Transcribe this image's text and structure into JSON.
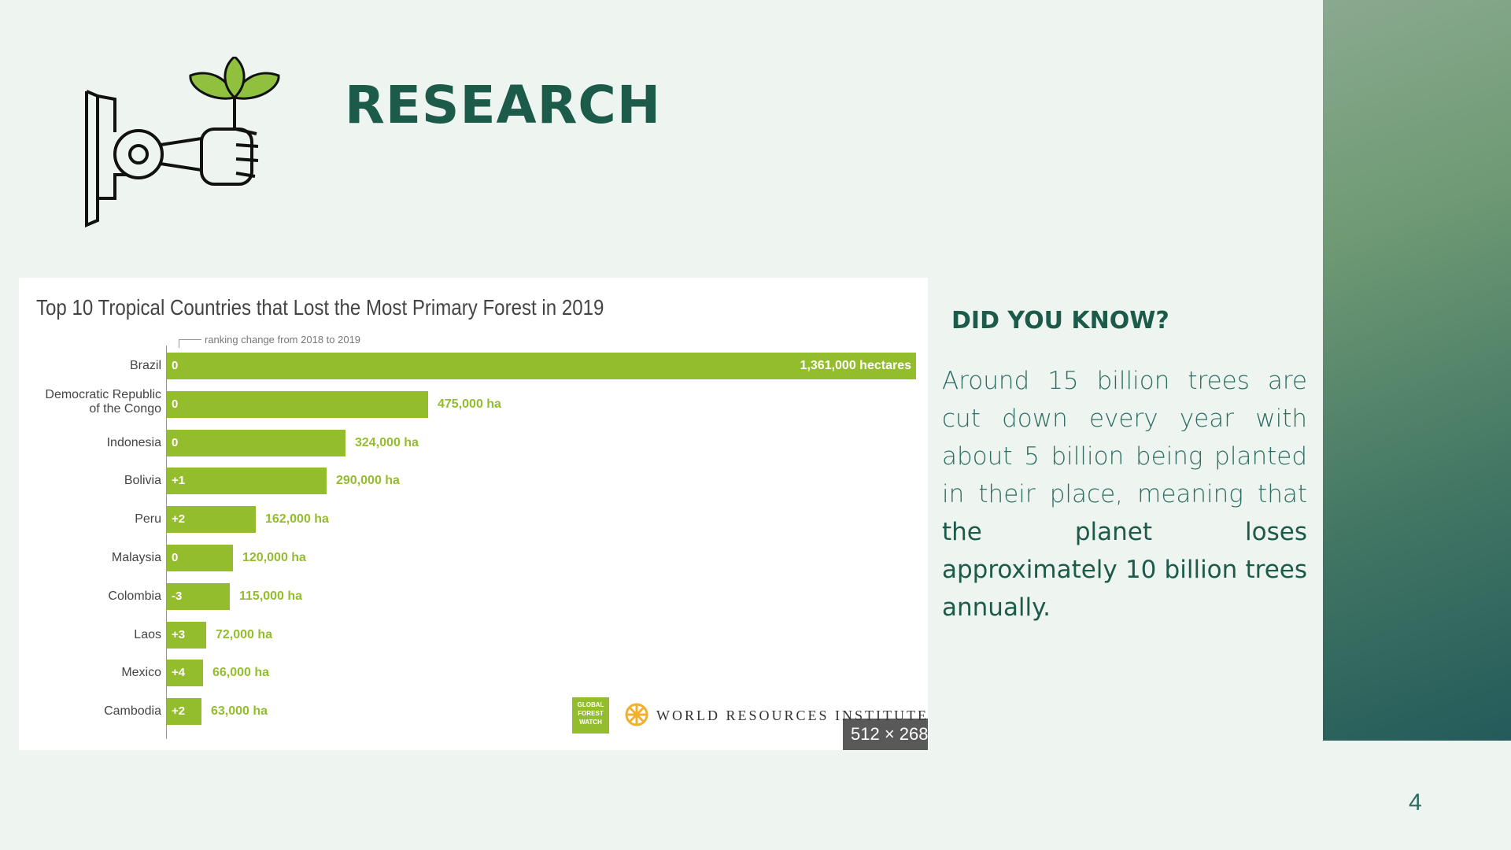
{
  "slide": {
    "title": "RESEARCH",
    "page_number": "4"
  },
  "icons": {
    "logo": "hand-holding-sprout-icon",
    "wri_mark": "wri-star-icon"
  },
  "chart": {
    "title": "Top 10 Tropical Countries that Lost the Most Primary Forest in 2019",
    "rank_note": "ranking change from 2018 to 2019",
    "gfw_logo_text": "GLOBAL FOREST WATCH",
    "wri_text": "WORLD RESOURCES INSTITUTE",
    "size_badge": "512 × 268"
  },
  "chart_data": {
    "type": "bar",
    "orientation": "horizontal",
    "title": "Top 10 Tropical Countries that Lost the Most Primary Forest in 2019",
    "categories": [
      "Brazil",
      "Democratic Republic of the Congo",
      "Indonesia",
      "Bolivia",
      "Peru",
      "Malaysia",
      "Colombia",
      "Laos",
      "Mexico",
      "Cambodia"
    ],
    "values": [
      1361000,
      475000,
      324000,
      290000,
      162000,
      120000,
      115000,
      72000,
      66000,
      63000
    ],
    "value_labels": [
      "1,361,000 hectares",
      "475,000 ha",
      "324,000 ha",
      "290,000 ha",
      "162,000 ha",
      "120,000 ha",
      "115,000 ha",
      "72,000 ha",
      "66,000 ha",
      "63,000 ha"
    ],
    "rank_changes": [
      "0",
      "0",
      "0",
      "+1",
      "+2",
      "0",
      "-3",
      "+3",
      "+4",
      "+2"
    ],
    "bar_color": "#94bd2d"
  },
  "fact": {
    "heading": "DID YOU KNOW?",
    "body_plain": "Around 15 billion trees are cut down every year with about 5 billion being planted in their place, meaning that ",
    "body_bold": "the planet loses approximately 10 billion trees annually."
  },
  "colors": {
    "title": "#1c5a4a",
    "background": "#eef4ef",
    "accent_green": "#94bd2d"
  }
}
